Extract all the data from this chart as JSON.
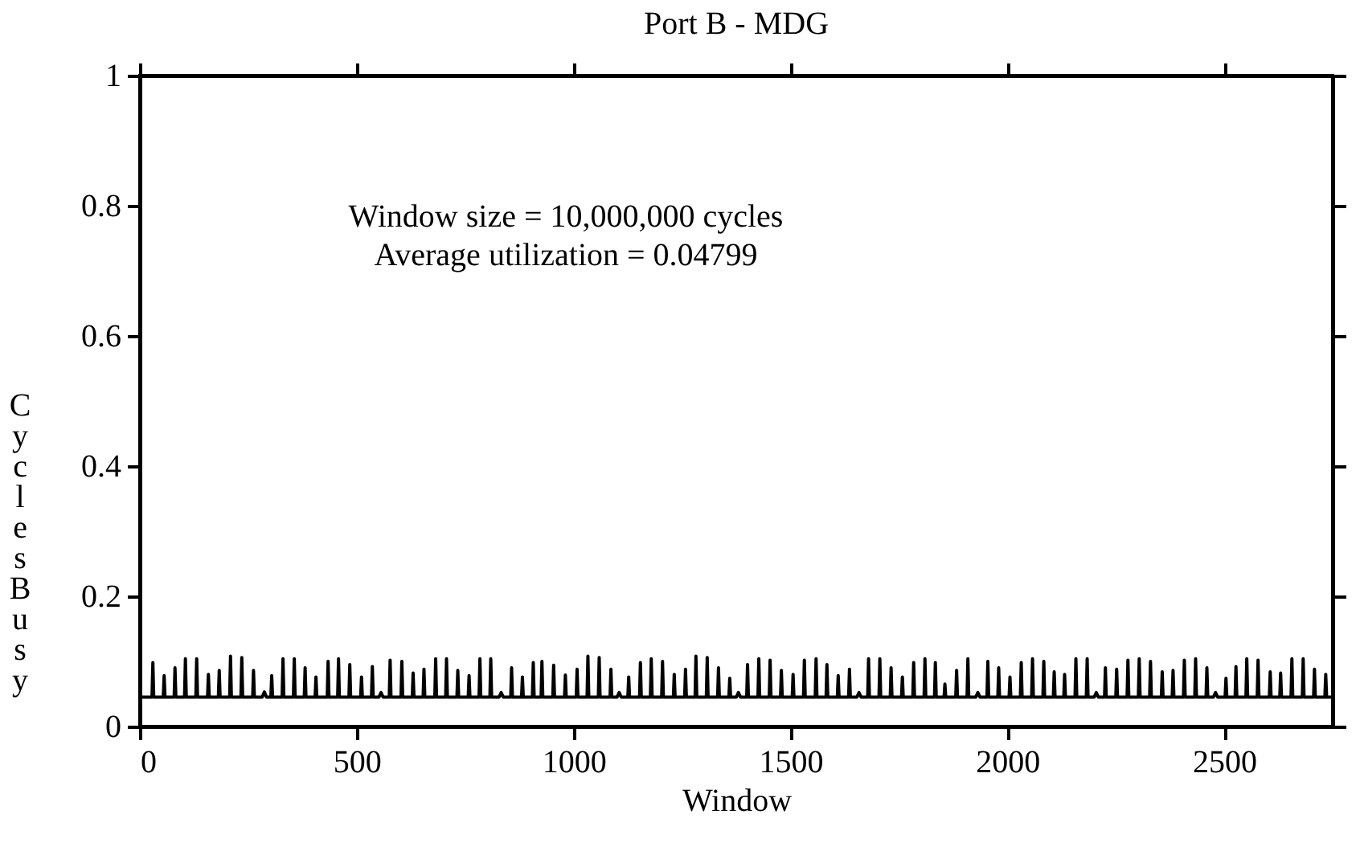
{
  "chart_data": {
    "type": "line",
    "title": "Port B - MDG",
    "xlabel": "Window",
    "ylabel": "Cycles Busy",
    "annotations": [
      "Window size = 10,000,000 cycles",
      "Average utilization = 0.04799"
    ],
    "xlim": [
      0,
      2750
    ],
    "ylim": [
      0,
      1
    ],
    "xticks": [
      0,
      500,
      1000,
      1500,
      2000,
      2500
    ],
    "yticks": [
      0,
      0.2,
      0.4,
      0.6,
      0.8,
      1
    ],
    "grid": false,
    "legend": false,
    "line_style": "solid",
    "marker": "none",
    "series": [
      {
        "color": "#000000",
        "x": [
          0,
          28,
          30,
          32,
          54,
          56,
          58,
          79,
          81,
          83,
          103,
          105,
          107,
          129,
          131,
          133,
          156,
          158,
          160,
          181,
          183,
          185,
          207,
          209,
          211,
          233,
          235,
          237,
          260,
          262,
          264,
          282,
          287,
          292,
          302,
          304,
          306,
          328,
          330,
          332,
          354,
          356,
          358,
          379,
          381,
          383,
          404,
          406,
          408,
          432,
          434,
          436,
          456,
          458,
          460,
          482,
          484,
          486,
          509,
          511,
          513,
          534,
          536,
          538,
          551,
          556,
          561,
          575,
          577,
          579,
          602,
          604,
          606,
          628,
          630,
          632,
          653,
          655,
          657,
          680,
          682,
          684,
          705,
          707,
          709,
          731,
          733,
          735,
          757,
          759,
          761,
          782,
          784,
          786,
          807,
          809,
          811,
          828,
          833,
          838,
          855,
          857,
          859,
          880,
          882,
          884,
          905,
          907,
          909,
          925,
          927,
          929,
          952,
          954,
          956,
          979,
          981,
          983,
          1006,
          1008,
          1010,
          1031,
          1033,
          1035,
          1057,
          1059,
          1061,
          1084,
          1086,
          1088,
          1100,
          1105,
          1110,
          1125,
          1127,
          1129,
          1152,
          1154,
          1156,
          1177,
          1179,
          1181,
          1203,
          1205,
          1207,
          1230,
          1232,
          1234,
          1256,
          1258,
          1260,
          1280,
          1282,
          1284,
          1306,
          1308,
          1310,
          1332,
          1334,
          1336,
          1358,
          1360,
          1362,
          1375,
          1380,
          1385,
          1399,
          1401,
          1403,
          1425,
          1427,
          1429,
          1451,
          1453,
          1455,
          1477,
          1479,
          1481,
          1504,
          1506,
          1508,
          1530,
          1532,
          1534,
          1557,
          1559,
          1561,
          1582,
          1584,
          1586,
          1608,
          1610,
          1612,
          1634,
          1636,
          1638,
          1653,
          1658,
          1663,
          1678,
          1680,
          1682,
          1704,
          1706,
          1708,
          1730,
          1732,
          1734,
          1756,
          1758,
          1760,
          1782,
          1784,
          1786,
          1808,
          1810,
          1812,
          1832,
          1834,
          1836,
          1854,
          1856,
          1858,
          1881,
          1883,
          1885,
          1907,
          1909,
          1911,
          1927,
          1932,
          1937,
          1953,
          1955,
          1957,
          1978,
          1980,
          1982,
          2004,
          2006,
          2008,
          2030,
          2032,
          2034,
          2056,
          2058,
          2060,
          2082,
          2084,
          2086,
          2106,
          2108,
          2110,
          2130,
          2132,
          2134,
          2156,
          2158,
          2160,
          2182,
          2184,
          2186,
          2200,
          2205,
          2210,
          2224,
          2226,
          2228,
          2250,
          2252,
          2254,
          2276,
          2278,
          2280,
          2302,
          2304,
          2306,
          2328,
          2330,
          2332,
          2355,
          2357,
          2359,
          2380,
          2382,
          2384,
          2406,
          2408,
          2410,
          2432,
          2434,
          2436,
          2458,
          2460,
          2462,
          2475,
          2480,
          2485,
          2502,
          2504,
          2506,
          2525,
          2527,
          2529,
          2550,
          2552,
          2554,
          2576,
          2578,
          2580,
          2604,
          2606,
          2608,
          2628,
          2630,
          2632,
          2654,
          2656,
          2658,
          2680,
          2682,
          2684,
          2706,
          2708,
          2710,
          2732,
          2734,
          2736,
          2750
        ],
        "values": [
          0.045,
          0.045,
          0.098,
          0.045,
          0.045,
          0.078,
          0.045,
          0.045,
          0.09,
          0.045,
          0.045,
          0.104,
          0.045,
          0.045,
          0.104,
          0.045,
          0.045,
          0.08,
          0.045,
          0.045,
          0.086,
          0.045,
          0.045,
          0.108,
          0.045,
          0.045,
          0.106,
          0.045,
          0.045,
          0.086,
          0.045,
          0.045,
          0.053,
          0.045,
          0.045,
          0.078,
          0.045,
          0.045,
          0.104,
          0.045,
          0.045,
          0.104,
          0.045,
          0.045,
          0.09,
          0.045,
          0.045,
          0.076,
          0.045,
          0.045,
          0.1,
          0.045,
          0.045,
          0.104,
          0.045,
          0.045,
          0.095,
          0.045,
          0.045,
          0.076,
          0.045,
          0.045,
          0.092,
          0.045,
          0.045,
          0.052,
          0.045,
          0.045,
          0.102,
          0.045,
          0.045,
          0.1,
          0.045,
          0.045,
          0.082,
          0.045,
          0.045,
          0.088,
          0.045,
          0.045,
          0.104,
          0.045,
          0.045,
          0.104,
          0.045,
          0.045,
          0.086,
          0.045,
          0.045,
          0.078,
          0.045,
          0.045,
          0.104,
          0.045,
          0.045,
          0.104,
          0.045,
          0.045,
          0.052,
          0.045,
          0.045,
          0.09,
          0.045,
          0.045,
          0.076,
          0.045,
          0.045,
          0.098,
          0.045,
          0.045,
          0.1,
          0.045,
          0.045,
          0.094,
          0.045,
          0.045,
          0.079,
          0.045,
          0.045,
          0.088,
          0.045,
          0.045,
          0.108,
          0.045,
          0.045,
          0.106,
          0.045,
          0.045,
          0.088,
          0.045,
          0.045,
          0.052,
          0.045,
          0.045,
          0.076,
          0.045,
          0.045,
          0.098,
          0.045,
          0.045,
          0.104,
          0.045,
          0.045,
          0.1,
          0.045,
          0.045,
          0.08,
          0.045,
          0.045,
          0.088,
          0.045,
          0.045,
          0.108,
          0.045,
          0.045,
          0.106,
          0.045,
          0.045,
          0.09,
          0.045,
          0.045,
          0.074,
          0.045,
          0.045,
          0.052,
          0.045,
          0.045,
          0.095,
          0.045,
          0.045,
          0.104,
          0.045,
          0.045,
          0.102,
          0.045,
          0.045,
          0.086,
          0.045,
          0.045,
          0.08,
          0.045,
          0.045,
          0.102,
          0.045,
          0.045,
          0.104,
          0.045,
          0.045,
          0.095,
          0.045,
          0.045,
          0.078,
          0.045,
          0.045,
          0.088,
          0.045,
          0.045,
          0.052,
          0.045,
          0.045,
          0.104,
          0.045,
          0.045,
          0.104,
          0.045,
          0.045,
          0.09,
          0.045,
          0.045,
          0.076,
          0.045,
          0.045,
          0.098,
          0.045,
          0.045,
          0.104,
          0.045,
          0.045,
          0.098,
          0.045,
          0.045,
          0.065,
          0.045,
          0.045,
          0.086,
          0.045,
          0.045,
          0.104,
          0.045,
          0.045,
          0.052,
          0.045,
          0.045,
          0.1,
          0.045,
          0.045,
          0.09,
          0.045,
          0.045,
          0.076,
          0.045,
          0.045,
          0.098,
          0.045,
          0.045,
          0.104,
          0.045,
          0.045,
          0.1,
          0.045,
          0.045,
          0.084,
          0.045,
          0.045,
          0.08,
          0.045,
          0.045,
          0.104,
          0.045,
          0.045,
          0.104,
          0.045,
          0.045,
          0.052,
          0.045,
          0.045,
          0.09,
          0.045,
          0.045,
          0.088,
          0.045,
          0.045,
          0.102,
          0.045,
          0.045,
          0.104,
          0.045,
          0.045,
          0.1,
          0.045,
          0.045,
          0.084,
          0.045,
          0.045,
          0.086,
          0.045,
          0.045,
          0.102,
          0.045,
          0.045,
          0.104,
          0.045,
          0.045,
          0.09,
          0.045,
          0.045,
          0.052,
          0.045,
          0.045,
          0.074,
          0.045,
          0.045,
          0.092,
          0.045,
          0.045,
          0.104,
          0.045,
          0.045,
          0.102,
          0.045,
          0.045,
          0.084,
          0.045,
          0.045,
          0.082,
          0.045,
          0.045,
          0.104,
          0.045,
          0.045,
          0.104,
          0.045,
          0.045,
          0.088,
          0.045,
          0.045,
          0.08,
          0.045,
          0.045
        ]
      }
    ]
  }
}
